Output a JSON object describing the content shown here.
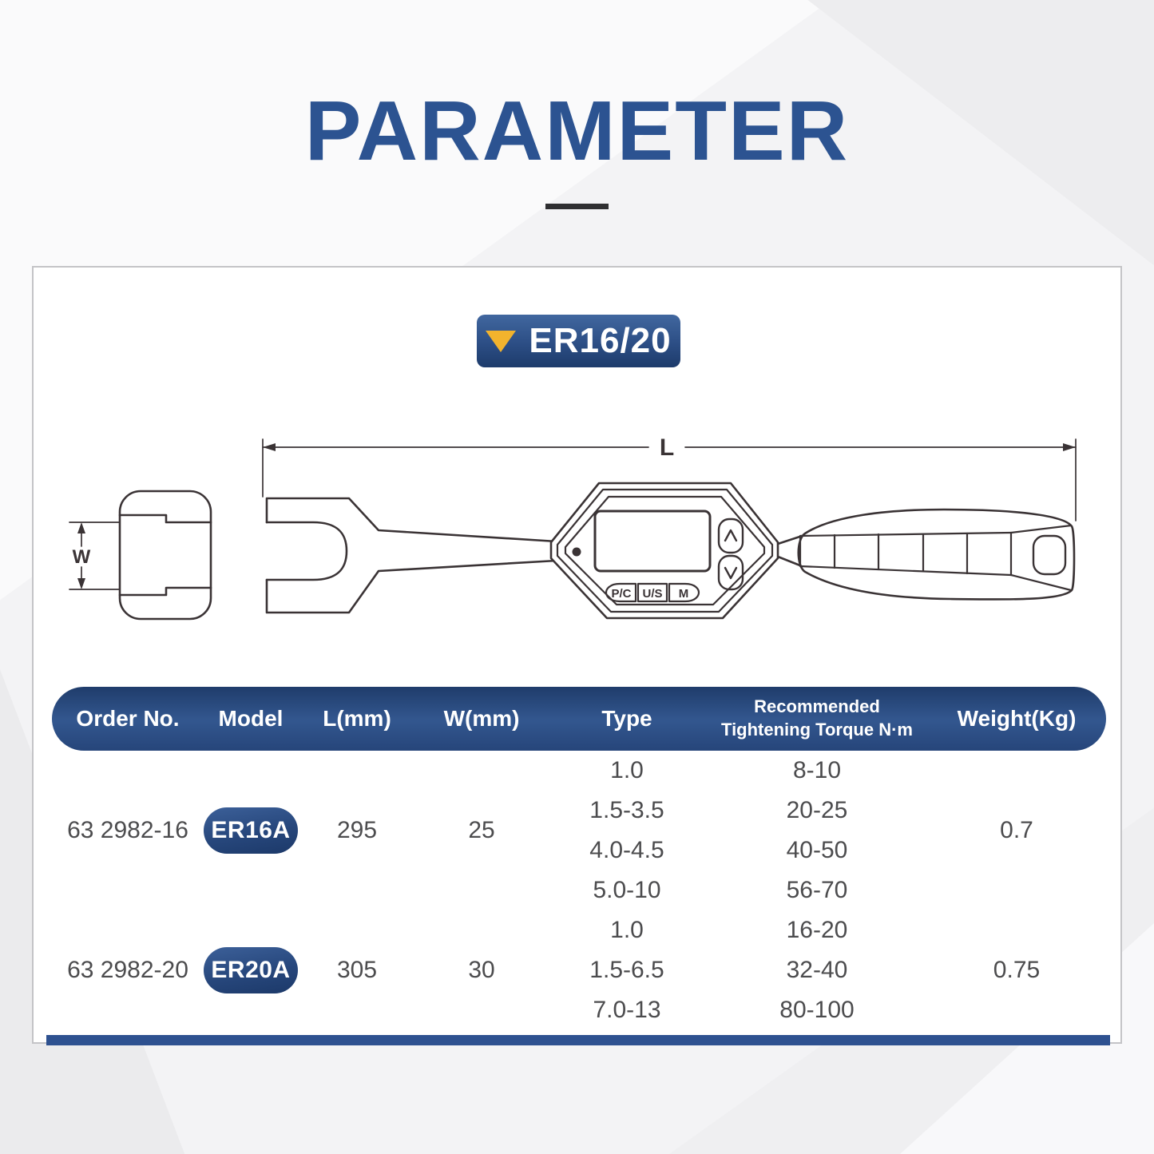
{
  "title": "PARAMETER",
  "series_badge": {
    "label": "ER16/20"
  },
  "diagram": {
    "length_label": "L",
    "width_label": "W",
    "display_buttons": [
      "P/C",
      "U/S",
      "M"
    ]
  },
  "table": {
    "headers": {
      "order_no": "Order No.",
      "model": "Model",
      "l_mm": "L(mm)",
      "w_mm": "W(mm)",
      "type": "Type",
      "torque_line1": "Recommended",
      "torque_line2": "Tightening Torque N·m",
      "weight": "Weight(Kg)"
    },
    "rows": [
      {
        "order_no": "63 2982-16",
        "model": "ER16A",
        "l_mm": "295",
        "w_mm": "25",
        "specs": [
          {
            "type": "1.0",
            "torque": "8-10"
          },
          {
            "type": "1.5-3.5",
            "torque": "20-25"
          },
          {
            "type": "4.0-4.5",
            "torque": "40-50"
          },
          {
            "type": "5.0-10",
            "torque": "56-70"
          }
        ],
        "weight": "0.7"
      },
      {
        "order_no": "63 2982-20",
        "model": "ER20A",
        "l_mm": "305",
        "w_mm": "30",
        "specs": [
          {
            "type": "1.0",
            "torque": "16-20"
          },
          {
            "type": "1.5-6.5",
            "torque": "32-40"
          },
          {
            "type": "7.0-13",
            "torque": "80-100"
          }
        ],
        "weight": "0.75"
      }
    ]
  },
  "colors": {
    "title_blue": "#2c5391",
    "header_gradient_top": "#1f3c6b",
    "header_gradient_mid": "#33578f",
    "header_gradient_bottom": "#26457a",
    "badge_triangle": "#f2b32d",
    "drawing_line": "#3a3335",
    "footer_bar": "#2e5190"
  }
}
